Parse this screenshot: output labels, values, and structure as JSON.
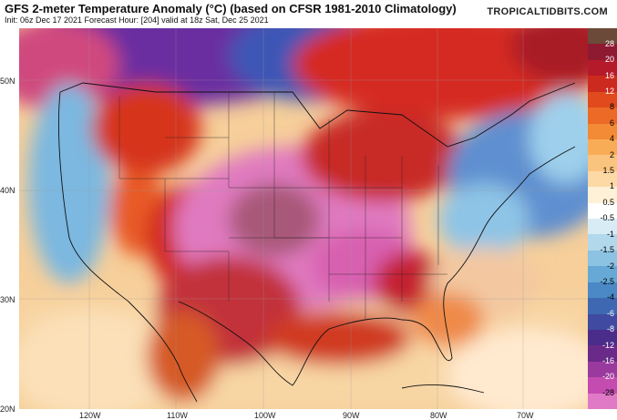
{
  "header": {
    "title": "GFS 2-meter Temperature Anomaly (°C) (based on CFSR 1981-2010 Climatology)",
    "init_line": "Init: 06z Dec 17 2021   Forecast Hour: [204]   valid at 18z Sat, Dec 25 2021",
    "brand": "TROPICALTIDBITS.COM"
  },
  "axes": {
    "lat_labels": [
      "50N",
      "40N",
      "30N",
      "20N"
    ],
    "lon_labels": [
      "120W",
      "110W",
      "100W",
      "90W",
      "80W",
      "70W"
    ]
  },
  "colorbar": {
    "labels": [
      "28",
      "20",
      "16",
      "12",
      "8",
      "6",
      "4",
      "2",
      "1.5",
      "1",
      "0.5",
      "-0.5",
      "-1",
      "-1.5",
      "-2",
      "-2.5",
      "-4",
      "-6",
      "-8",
      "-12",
      "-16",
      "-20",
      "-28"
    ],
    "colors": [
      "#6b4a3a",
      "#8e1a32",
      "#b51a2a",
      "#cc2a1e",
      "#e04a1c",
      "#ec6a26",
      "#f38a36",
      "#f9ac56",
      "#fbc47e",
      "#fdd9a6",
      "#fff1d8",
      "#ffffff",
      "#d8ecf6",
      "#b2d8ec",
      "#8cc2e2",
      "#66a8d6",
      "#4a88c6",
      "#3e68b2",
      "#3f4aa0",
      "#4a2c8a",
      "#6a2a8a",
      "#9a3a9e",
      "#c44cb0",
      "#e07ac6"
    ]
  },
  "map": {
    "variable": "2-meter temperature anomaly",
    "units": "°C",
    "region": "Continental United States"
  }
}
